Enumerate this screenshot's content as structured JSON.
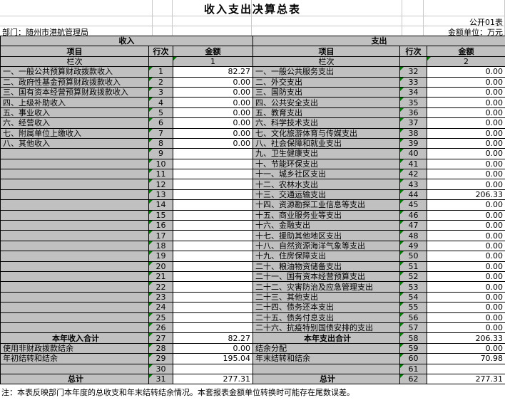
{
  "title": "收入支出决算总表",
  "meta": {
    "doc_code": "公开01表",
    "department": "部门：随州市港航管理局",
    "unit": "金额单位：万元"
  },
  "sections": {
    "income": "收入",
    "expenditure": "支出"
  },
  "headers": {
    "item": "项目",
    "line_no": "行次",
    "amount": "金额",
    "column_no": "栏次",
    "income_col": "1",
    "expense_col": "2"
  },
  "income_rows": [
    {
      "label": "一、一般公共预算财政拨款收入",
      "line": "1",
      "amount": "82.27"
    },
    {
      "label": "二、政府性基金预算财政拨款收入",
      "line": "2",
      "amount": "0.00"
    },
    {
      "label": "三、国有资本经营预算财政拨款收入",
      "line": "3",
      "amount": "0.00"
    },
    {
      "label": "四、上级补助收入",
      "line": "4",
      "amount": "0.00"
    },
    {
      "label": "五、事业收入",
      "line": "5",
      "amount": "0.00"
    },
    {
      "label": "六、经营收入",
      "line": "6",
      "amount": "0.00"
    },
    {
      "label": "七、附属单位上缴收入",
      "line": "7",
      "amount": "0.00"
    },
    {
      "label": "八、其他收入",
      "line": "8",
      "amount": "0.00"
    },
    {
      "label": "",
      "line": "9",
      "amount": ""
    },
    {
      "label": "",
      "line": "10",
      "amount": ""
    },
    {
      "label": "",
      "line": "11",
      "amount": ""
    },
    {
      "label": "",
      "line": "12",
      "amount": ""
    },
    {
      "label": "",
      "line": "13",
      "amount": ""
    },
    {
      "label": "",
      "line": "14",
      "amount": ""
    },
    {
      "label": "",
      "line": "15",
      "amount": ""
    },
    {
      "label": "",
      "line": "16",
      "amount": ""
    },
    {
      "label": "",
      "line": "17",
      "amount": ""
    },
    {
      "label": "",
      "line": "18",
      "amount": ""
    },
    {
      "label": "",
      "line": "19",
      "amount": ""
    },
    {
      "label": "",
      "line": "20",
      "amount": ""
    },
    {
      "label": "",
      "line": "21",
      "amount": ""
    },
    {
      "label": "",
      "line": "22",
      "amount": ""
    },
    {
      "label": "",
      "line": "23",
      "amount": ""
    },
    {
      "label": "",
      "line": "24",
      "amount": ""
    },
    {
      "label": "",
      "line": "25",
      "amount": ""
    },
    {
      "label": "",
      "line": "26",
      "amount": ""
    },
    {
      "label": "本年收入合计",
      "line": "27",
      "amount": "82.27",
      "sum": true
    },
    {
      "label": "使用非财政拨款结余",
      "line": "28",
      "amount": "0.00"
    },
    {
      "label": "年初结转和结余",
      "line": "29",
      "amount": "195.04"
    },
    {
      "label": "",
      "line": "30",
      "amount": ""
    },
    {
      "label": "总计",
      "line": "31",
      "amount": "277.31",
      "sum": true
    }
  ],
  "expense_rows": [
    {
      "label": "一、一般公共服务支出",
      "line": "32",
      "amount": "0.00"
    },
    {
      "label": "二、外交支出",
      "line": "33",
      "amount": "0.00"
    },
    {
      "label": "三、国防支出",
      "line": "34",
      "amount": "0.00"
    },
    {
      "label": "四、公共安全支出",
      "line": "35",
      "amount": "0.00"
    },
    {
      "label": "五、教育支出",
      "line": "36",
      "amount": "0.00"
    },
    {
      "label": "六、科学技术支出",
      "line": "37",
      "amount": "0.00"
    },
    {
      "label": "七、文化旅游体育与传媒支出",
      "line": "38",
      "amount": "0.00"
    },
    {
      "label": "八、社会保障和就业支出",
      "line": "39",
      "amount": "0.00"
    },
    {
      "label": "九、卫生健康支出",
      "line": "40",
      "amount": "0.00"
    },
    {
      "label": "十、节能环保支出",
      "line": "41",
      "amount": "0.00"
    },
    {
      "label": "十一、城乡社区支出",
      "line": "42",
      "amount": "0.00"
    },
    {
      "label": "十二、农林水支出",
      "line": "43",
      "amount": "0.00"
    },
    {
      "label": "十三、交通运输支出",
      "line": "44",
      "amount": "206.33"
    },
    {
      "label": "十四、资源勘探工业信息等支出",
      "line": "45",
      "amount": "0.00"
    },
    {
      "label": "十五、商业服务业等支出",
      "line": "46",
      "amount": "0.00"
    },
    {
      "label": "十六、金融支出",
      "line": "47",
      "amount": "0.00"
    },
    {
      "label": "十七、援助其他地区支出",
      "line": "48",
      "amount": "0.00"
    },
    {
      "label": "十八、自然资源海洋气象等支出",
      "line": "49",
      "amount": "0.00"
    },
    {
      "label": "十九、住房保障支出",
      "line": "50",
      "amount": "0.00"
    },
    {
      "label": "二十、粮油物资储备支出",
      "line": "51",
      "amount": "0.00"
    },
    {
      "label": "二十一、国有资本经营预算支出",
      "line": "52",
      "amount": "0.00"
    },
    {
      "label": "二十二、灾害防治及应急管理支出",
      "line": "53",
      "amount": "0.00"
    },
    {
      "label": "二十三、其他支出",
      "line": "54",
      "amount": "0.00"
    },
    {
      "label": "二十四、债务还本支出",
      "line": "55",
      "amount": "0.00"
    },
    {
      "label": "二十五、债务付息支出",
      "line": "56",
      "amount": "0.00"
    },
    {
      "label": "二十六、抗疫特别国债安排的支出",
      "line": "57",
      "amount": "0.00"
    },
    {
      "label": "本年支出合计",
      "line": "58",
      "amount": "206.33",
      "sum": true
    },
    {
      "label": "结余分配",
      "line": "59",
      "amount": "0.00"
    },
    {
      "label": "年末结转和结余",
      "line": "60",
      "amount": "70.98"
    },
    {
      "label": "",
      "line": "61",
      "amount": ""
    },
    {
      "label": "总计",
      "line": "62",
      "amount": "277.31",
      "sum": true
    }
  ],
  "note": "注：本表反映部门本年度的总收支和年末结转结余情况。本套报表金额单位转换时可能存在尾数误差。",
  "colors": {
    "cell_gray": "#c0c0c0",
    "border_black": "#000000",
    "triangle_green": "#007a00",
    "gridline_light": "#c8c8c8"
  }
}
